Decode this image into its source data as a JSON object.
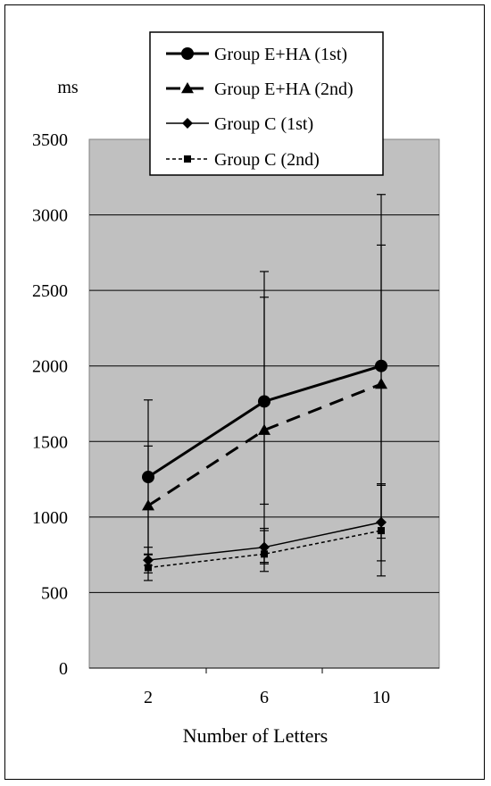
{
  "chart_data": {
    "type": "line",
    "title": "",
    "xlabel": "Number of Letters",
    "ylabel": "ms",
    "categories": [
      "2",
      "6",
      "10"
    ],
    "ylim": [
      0,
      3500
    ],
    "yticks": [
      "0",
      "500",
      "1000",
      "1500",
      "2000",
      "2500",
      "3000",
      "3500"
    ],
    "grid": true,
    "legend_position": "top",
    "plot_background": "#c0c0c0",
    "series": [
      {
        "name": "Group E+HA (1st)",
        "marker": "circle",
        "line_style": "solid-thick",
        "values": [
          1265,
          1765,
          2000
        ],
        "error_low": [
          755,
          1085,
          860
        ],
        "error_high": [
          1775,
          2625,
          3135
        ]
      },
      {
        "name": "Group E+HA (2nd)",
        "marker": "triangle",
        "line_style": "dashed-thick",
        "values": [
          1075,
          1575,
          1880
        ],
        "error_low": [
          680,
          700,
          960
        ],
        "error_high": [
          1470,
          2455,
          2800
        ]
      },
      {
        "name": "Group C (1st)",
        "marker": "diamond",
        "line_style": "solid-thin",
        "values": [
          715,
          800,
          965
        ],
        "error_low": [
          630,
          690,
          710
        ],
        "error_high": [
          800,
          910,
          1220
        ]
      },
      {
        "name": "Group C (2nd)",
        "marker": "square",
        "line_style": "dotted-thin",
        "values": [
          665,
          755,
          910
        ],
        "error_low": [
          580,
          640,
          610
        ],
        "error_high": [
          750,
          925,
          1210
        ]
      }
    ]
  }
}
